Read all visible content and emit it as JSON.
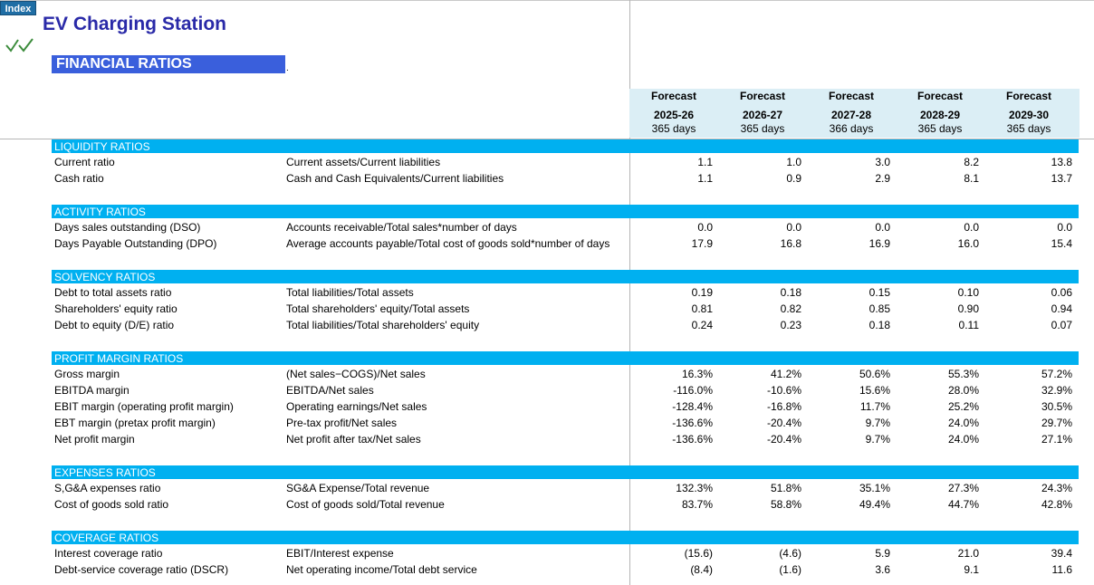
{
  "index_button": "Index",
  "app_title": "EV Charging Station",
  "subtitle": "FINANCIAL RATIOS",
  "dot": ".",
  "forecast_columns": [
    {
      "label": "Forecast",
      "period": "2025-26",
      "days": "365 days"
    },
    {
      "label": "Forecast",
      "period": "2026-27",
      "days": "365 days"
    },
    {
      "label": "Forecast",
      "period": "2027-28",
      "days": "366 days"
    },
    {
      "label": "Forecast",
      "period": "2028-29",
      "days": "365 days"
    },
    {
      "label": "Forecast",
      "period": "2029-30",
      "days": "365 days"
    }
  ],
  "sections": [
    {
      "title": "LIQUIDITY RATIOS",
      "rows": [
        {
          "label": "Current ratio",
          "formula": "Current assets/Current liabilities",
          "values": [
            "1.1",
            "1.0",
            "3.0",
            "8.2",
            "13.8"
          ]
        },
        {
          "label": "Cash ratio",
          "formula": "Cash and Cash Equivalents/Current liabilities",
          "values": [
            "1.1",
            "0.9",
            "2.9",
            "8.1",
            "13.7"
          ]
        }
      ]
    },
    {
      "title": "ACTIVITY RATIOS",
      "rows": [
        {
          "label": "Days sales outstanding (DSO)",
          "formula": "Accounts receivable/Total sales*number of days",
          "values": [
            "0.0",
            "0.0",
            "0.0",
            "0.0",
            "0.0"
          ]
        },
        {
          "label": "Days Payable Outstanding (DPO)",
          "formula": "Average accounts payable/Total cost of goods sold*number of days",
          "values": [
            "17.9",
            "16.8",
            "16.9",
            "16.0",
            "15.4"
          ]
        }
      ]
    },
    {
      "title": "SOLVENCY RATIOS",
      "rows": [
        {
          "label": "Debt to total assets ratio",
          "formula": "Total liabilities/Total assets",
          "values": [
            "0.19",
            "0.18",
            "0.15",
            "0.10",
            "0.06"
          ]
        },
        {
          "label": "Shareholders' equity ratio",
          "formula": "Total shareholders' equity/Total assets",
          "values": [
            "0.81",
            "0.82",
            "0.85",
            "0.90",
            "0.94"
          ]
        },
        {
          "label": "Debt to equity (D/E) ratio",
          "formula": "Total liabilities/Total shareholders' equity",
          "values": [
            "0.24",
            "0.23",
            "0.18",
            "0.11",
            "0.07"
          ]
        }
      ]
    },
    {
      "title": "PROFIT MARGIN RATIOS",
      "rows": [
        {
          "label": "Gross margin",
          "formula": "(Net sales−COGS)/Net sales",
          "values": [
            "16.3%",
            "41.2%",
            "50.6%",
            "55.3%",
            "57.2%"
          ]
        },
        {
          "label": "EBITDA margin",
          "formula": "EBITDA/Net sales",
          "values": [
            "-116.0%",
            "-10.6%",
            "15.6%",
            "28.0%",
            "32.9%"
          ]
        },
        {
          "label": "EBIT margin (operating profit margin)",
          "formula": "Operating earnings/Net sales",
          "values": [
            "-128.4%",
            "-16.8%",
            "11.7%",
            "25.2%",
            "30.5%"
          ]
        },
        {
          "label": "EBT margin (pretax profit margin)",
          "formula": "Pre-tax profit/Net sales",
          "values": [
            "-136.6%",
            "-20.4%",
            "9.7%",
            "24.0%",
            "29.7%"
          ]
        },
        {
          "label": "Net profit margin",
          "formula": "Net profit after tax/Net sales",
          "values": [
            "-136.6%",
            "-20.4%",
            "9.7%",
            "24.0%",
            "27.1%"
          ]
        }
      ]
    },
    {
      "title": "EXPENSES RATIOS",
      "rows": [
        {
          "label": "S,G&A expenses ratio",
          "formula": "SG&A Expense/Total revenue",
          "values": [
            "132.3%",
            "51.8%",
            "35.1%",
            "27.3%",
            "24.3%"
          ]
        },
        {
          "label": "Cost of goods sold ratio",
          "formula": "Cost of goods sold/Total revenue",
          "values": [
            "83.7%",
            "58.8%",
            "49.4%",
            "44.7%",
            "42.8%"
          ]
        }
      ]
    },
    {
      "title": "COVERAGE RATIOS",
      "rows": [
        {
          "label": "Interest coverage ratio",
          "formula": "EBIT/Interest expense",
          "values": [
            "(15.6)",
            "(4.6)",
            "5.9",
            "21.0",
            "39.4"
          ]
        },
        {
          "label": "Debt-service coverage ratio (DSCR)",
          "formula": "Net operating income/Total debt service",
          "values": [
            "(8.4)",
            "(1.6)",
            "3.6",
            "9.1",
            "11.6"
          ]
        }
      ]
    }
  ]
}
